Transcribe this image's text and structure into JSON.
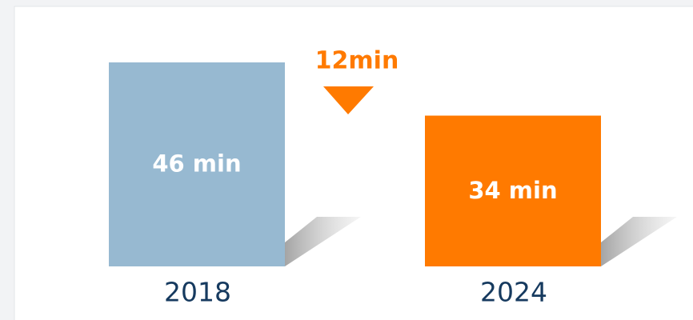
{
  "chart_data": {
    "type": "bar",
    "categories": [
      "2018",
      "2024"
    ],
    "values": [
      46,
      34
    ],
    "value_labels": [
      "46 min",
      "34 min"
    ],
    "colors": [
      "#97b9d1",
      "#ff7a00"
    ],
    "annotation": "12min",
    "annotation_color": "#ff7a00"
  }
}
